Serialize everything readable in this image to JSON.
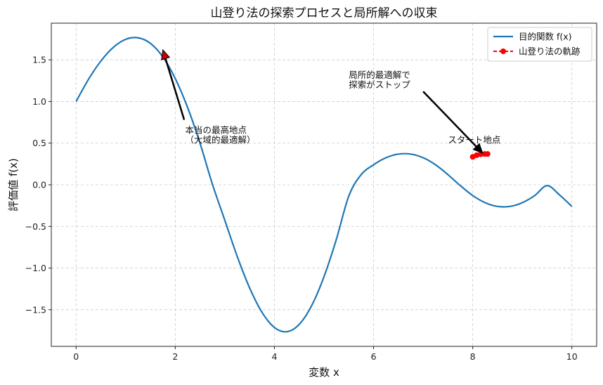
{
  "chart_data": {
    "type": "line",
    "title": "山登り法の探索プロセスと局所解への収束",
    "xlabel": "変数 x",
    "ylabel": "評価値 f(x)",
    "xlim": [
      -0.5,
      10.5
    ],
    "ylim": [
      -1.94,
      1.94
    ],
    "xticks": [
      0,
      2,
      4,
      6,
      8,
      10
    ],
    "xtick_labels": [
      "0",
      "2",
      "4",
      "6",
      "8",
      "10"
    ],
    "yticks": [
      -1.5,
      -1.0,
      -0.5,
      0.0,
      0.5,
      1.0,
      1.5
    ],
    "ytick_labels": [
      "−1.5",
      "−1.0",
      "−0.5",
      "0.0",
      "0.5",
      "1.0",
      "1.5"
    ],
    "grid": true,
    "legend_position": "top-right",
    "series": [
      {
        "name": "目的関数 f(x)",
        "color": "#1f77b4",
        "style": "solid",
        "x": [
          0,
          0.25,
          0.5,
          0.75,
          1.0,
          1.25,
          1.5,
          1.75,
          2.0,
          2.25,
          2.5,
          2.75,
          3.0,
          3.25,
          3.5,
          3.75,
          4.0,
          4.25,
          4.5,
          4.75,
          5.0,
          5.25,
          5.5,
          5.75,
          6.0,
          6.25,
          6.5,
          6.75,
          7.0,
          7.25,
          7.5,
          7.75,
          8.0,
          8.25,
          8.5,
          8.75,
          9.0,
          9.25,
          9.5,
          9.75,
          10.0
        ],
        "y": [
          1.0,
          1.2658,
          1.4856,
          1.6495,
          1.746,
          1.7651,
          1.6974,
          1.5344,
          1.2757,
          0.9263,
          0.4975,
          0.0058,
          -0.4267,
          -0.86,
          -1.2385,
          -1.5316,
          -1.713,
          -1.7643,
          -1.6767,
          -1.4522,
          -1.1036,
          -0.6541,
          -0.1358,
          0.1218,
          0.2399,
          0.3244,
          0.3683,
          0.3683,
          0.3244,
          0.2399,
          0.1218,
          -0.0103,
          -0.1297,
          -0.2148,
          -0.2598,
          -0.2598,
          -0.2148,
          -0.1297,
          -0.0103,
          -0.1218,
          -0.2599
        ]
      },
      {
        "name": "山登り法の軌跡",
        "color": "#ff0000",
        "style": "dashed-marker",
        "x": [
          8.0,
          8.08,
          8.16,
          8.24,
          8.3
        ],
        "y": [
          0.335,
          0.355,
          0.366,
          0.37,
          0.37
        ]
      }
    ],
    "annotations": [
      {
        "lines": [
          "本当の最高地点",
          "（大域的最適解）"
        ],
        "text_x": 2.2,
        "text_y": 0.62,
        "arrow_from": [
          2.18,
          0.78
        ],
        "arrow_to": [
          1.75,
          1.62
        ]
      },
      {
        "lines": [
          "局所的最適解で",
          "探索がストップ"
        ],
        "text_x": 5.5,
        "text_y": 1.28,
        "arrow_from": [
          7.0,
          1.12
        ],
        "arrow_to": [
          8.2,
          0.38
        ]
      },
      {
        "lines": [
          "スタート地点"
        ],
        "text_x": 7.5,
        "text_y": 0.5,
        "arrow_from": [
          8.0,
          0.42
        ],
        "arrow_to": [
          8.0,
          0.35
        ]
      }
    ]
  }
}
